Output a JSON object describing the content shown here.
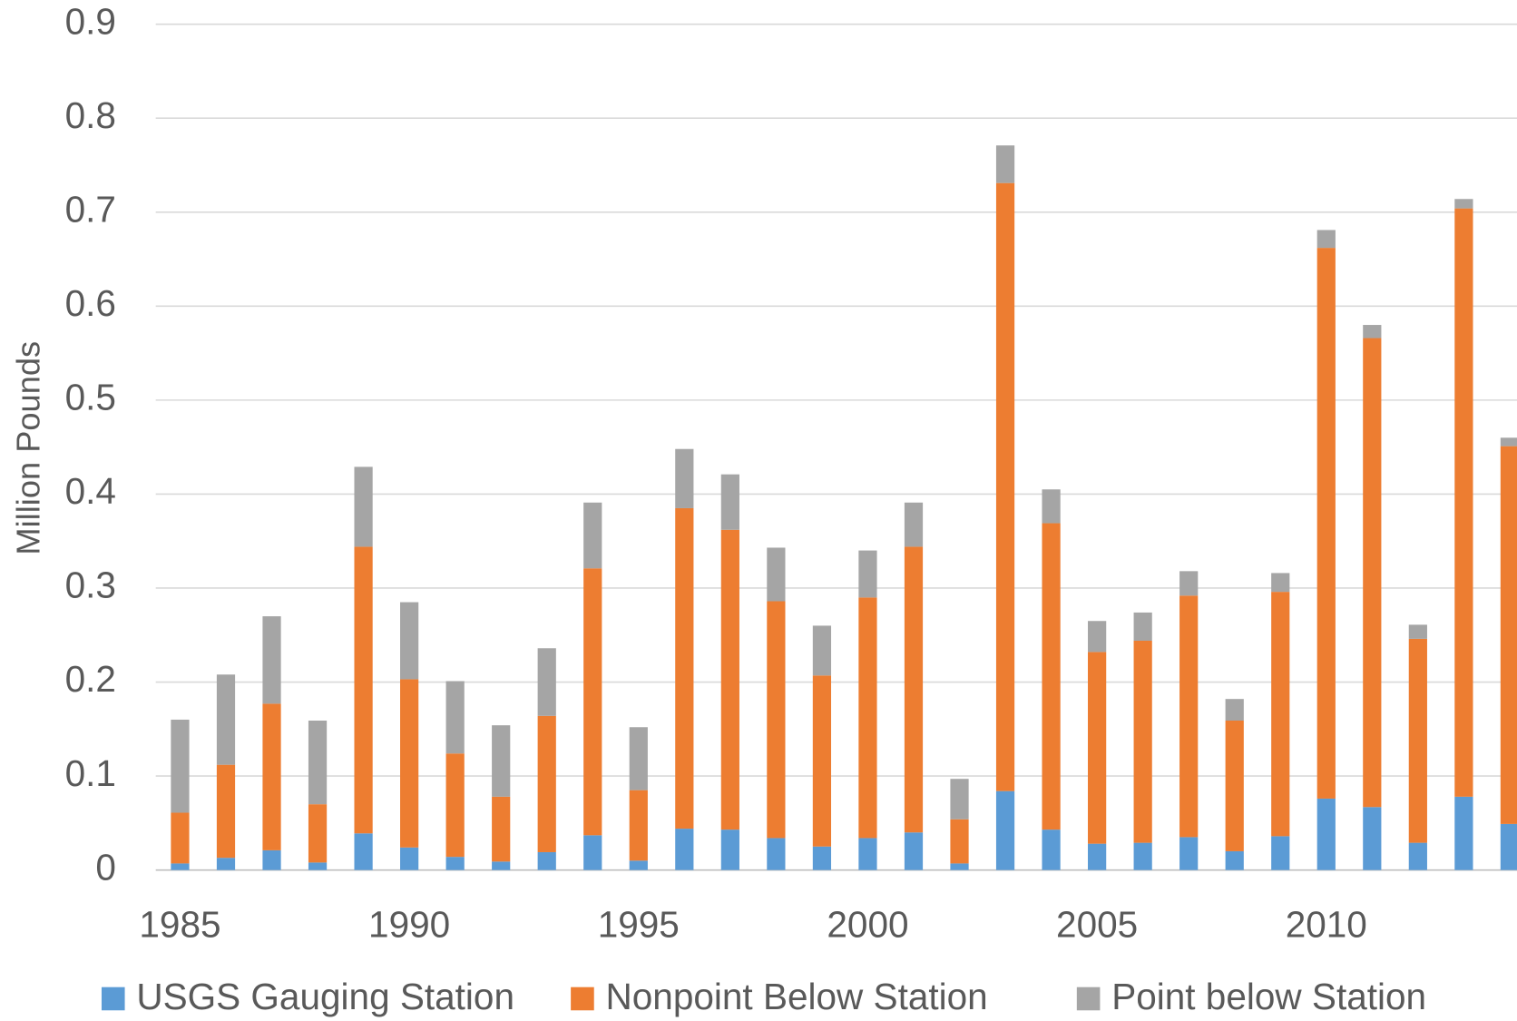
{
  "chart_data": {
    "type": "stacked_bar",
    "y_label": "Million Pounds",
    "x": [
      1985,
      1986,
      1987,
      1988,
      1989,
      1990,
      1991,
      1992,
      1993,
      1994,
      1995,
      1996,
      1997,
      1998,
      1999,
      2000,
      2001,
      2002,
      2003,
      2004,
      2005,
      2006,
      2007,
      2008,
      2009,
      2010,
      2011,
      2012,
      2013,
      2014
    ],
    "series": [
      {
        "name": "USGS Gauging Station",
        "color": "#5b9bd5",
        "values": [
          0.007,
          0.013,
          0.021,
          0.008,
          0.039,
          0.024,
          0.014,
          0.009,
          0.019,
          0.037,
          0.01,
          0.044,
          0.043,
          0.034,
          0.025,
          0.034,
          0.04,
          0.007,
          0.084,
          0.043,
          0.028,
          0.029,
          0.035,
          0.02,
          0.036,
          0.076,
          0.067,
          0.029,
          0.078,
          0.049
        ]
      },
      {
        "name": "Nonpoint Below Station",
        "color": "#ed7d31",
        "values": [
          0.054,
          0.099,
          0.156,
          0.062,
          0.305,
          0.179,
          0.11,
          0.069,
          0.145,
          0.284,
          0.075,
          0.341,
          0.319,
          0.252,
          0.182,
          0.256,
          0.304,
          0.047,
          0.647,
          0.326,
          0.204,
          0.215,
          0.257,
          0.139,
          0.26,
          0.586,
          0.499,
          0.217,
          0.626,
          0.402
        ]
      },
      {
        "name": "Point below Station",
        "color": "#a5a5a5",
        "values": [
          0.099,
          0.096,
          0.093,
          0.089,
          0.085,
          0.082,
          0.077,
          0.076,
          0.072,
          0.07,
          0.067,
          0.063,
          0.059,
          0.057,
          0.053,
          0.05,
          0.047,
          0.043,
          0.04,
          0.036,
          0.033,
          0.03,
          0.026,
          0.023,
          0.02,
          0.019,
          0.014,
          0.015,
          0.01,
          0.009
        ]
      }
    ],
    "xlim": [
      1984.47,
      2014.16
    ],
    "xticks": [
      1985,
      1990,
      1995,
      2000,
      2005,
      2010
    ],
    "ylim": [
      0,
      0.9
    ],
    "yticks": [
      0,
      0.1,
      0.2,
      0.3,
      0.4,
      0.5,
      0.6,
      0.7,
      0.8,
      0.9
    ],
    "grid": true,
    "legend": "bottom"
  }
}
